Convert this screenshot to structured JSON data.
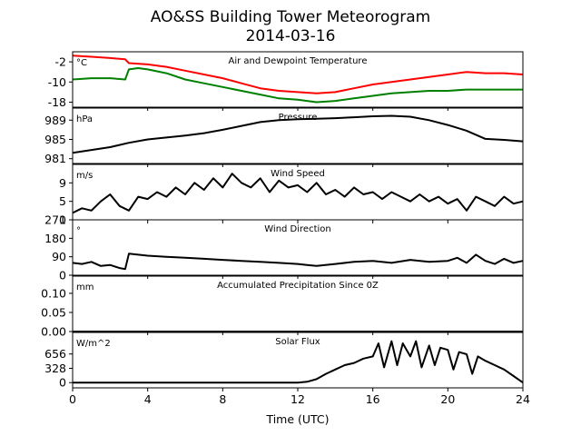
{
  "title": "AO&SS Building Tower Meteorogram",
  "subtitle": "2014-03-16",
  "chart_data": {
    "type": "line",
    "xlabel": "Time (UTC)",
    "xlim": [
      0,
      24
    ],
    "xticks": [
      0,
      4,
      8,
      12,
      16,
      20,
      24
    ],
    "grid": false,
    "panels": [
      {
        "label": "Air and Dewpoint Temperature",
        "unit": "°C",
        "ylim": [
          -20,
          2
        ],
        "yticks": [
          -2,
          -10,
          -18
        ],
        "series": [
          {
            "key": "air",
            "color": "#ff0000",
            "x": [
              0,
              1,
              2,
              2.8,
              3,
              4,
              5,
              6,
              7,
              8,
              9,
              10,
              11,
              12,
              13,
              14,
              15,
              16,
              17,
              18,
              19,
              20,
              21,
              22,
              23,
              24
            ],
            "y": [
              0.5,
              0,
              -0.5,
              -1,
              -2.5,
              -3,
              -4,
              -5.5,
              -7,
              -8.5,
              -10.5,
              -12.5,
              -13.5,
              -14,
              -14.5,
              -14,
              -12.5,
              -11,
              -10,
              -9,
              -8,
              -7,
              -6,
              -6.5,
              -6.5,
              -7
            ]
          },
          {
            "key": "dewpoint",
            "color": "#008000",
            "x": [
              0,
              1,
              2,
              2.8,
              3,
              3.5,
              4,
              5,
              6,
              7,
              8,
              9,
              10,
              11,
              12,
              13,
              14,
              15,
              16,
              17,
              18,
              19,
              20,
              21,
              22,
              23,
              24
            ],
            "y": [
              -9,
              -8.5,
              -8.5,
              -9,
              -5,
              -4.5,
              -5,
              -6.5,
              -9,
              -10.5,
              -12,
              -13.5,
              -15,
              -16.5,
              -17,
              -18,
              -17.5,
              -16.5,
              -15.5,
              -14.5,
              -14,
              -13.5,
              -13.5,
              -13,
              -13,
              -13,
              -13
            ]
          }
        ]
      },
      {
        "label": "Pressure",
        "unit": "hPa",
        "ylim": [
          980,
          991.5
        ],
        "yticks": [
          989,
          985,
          981
        ],
        "series": [
          {
            "key": "pressure",
            "color": "#000000",
            "x": [
              0,
              1,
              2,
              3,
              4,
              5,
              6,
              7,
              8,
              9,
              10,
              11,
              12,
              13,
              14,
              15,
              16,
              17,
              18,
              19,
              20,
              21,
              22,
              23,
              24
            ],
            "y": [
              982.2,
              982.8,
              983.4,
              984.3,
              985,
              985.4,
              985.8,
              986.3,
              987,
              987.8,
              988.6,
              989,
              989.2,
              989.3,
              989.4,
              989.6,
              989.8,
              989.9,
              989.7,
              989,
              988,
              986.8,
              985.1,
              984.9,
              984.6
            ]
          }
        ]
      },
      {
        "label": "Wind Speed",
        "unit": "m/s",
        "ylim": [
          1,
          13
        ],
        "yticks": [
          9,
          5,
          1
        ],
        "series": [
          {
            "key": "wind_speed",
            "color": "#000000",
            "x": [
              0,
              0.5,
              1,
              1.5,
              2,
              2.5,
              3,
              3.5,
              4,
              4.5,
              5,
              5.5,
              6,
              6.5,
              7,
              7.5,
              8,
              8.5,
              9,
              9.5,
              10,
              10.5,
              11,
              11.5,
              12,
              12.5,
              13,
              13.5,
              14,
              14.5,
              15,
              15.5,
              16,
              16.5,
              17,
              17.5,
              18,
              18.5,
              19,
              19.5,
              20,
              20.5,
              21,
              21.5,
              22,
              22.5,
              23,
              23.5,
              24
            ],
            "y": [
              2.5,
              3.5,
              3,
              5,
              6.5,
              4,
              3,
              6,
              5.5,
              7,
              6,
              8,
              6.5,
              9,
              7.5,
              10,
              8,
              11,
              9,
              8,
              10,
              7,
              9.5,
              8,
              8.5,
              7,
              9,
              6.5,
              7.5,
              6,
              8,
              6.5,
              7,
              5.5,
              7,
              6,
              5,
              6.5,
              5,
              6,
              4.5,
              5.5,
              3,
              6,
              5,
              4,
              6,
              4.5,
              5
            ]
          }
        ]
      },
      {
        "label": "Wind Direction",
        "unit": "°",
        "ylim": [
          0,
          270
        ],
        "yticks": [
          270,
          180,
          90,
          0
        ],
        "series": [
          {
            "key": "wind_direction",
            "color": "#000000",
            "x": [
              0,
              0.5,
              1,
              1.5,
              2,
              2.5,
              2.8,
              3,
              3.5,
              4,
              5,
              6,
              7,
              8,
              9,
              10,
              11,
              12,
              12.5,
              13,
              14,
              15,
              16,
              17,
              18,
              19,
              20,
              20.5,
              21,
              21.5,
              22,
              22.5,
              23,
              23.5,
              24
            ],
            "y": [
              60,
              55,
              65,
              45,
              50,
              35,
              30,
              105,
              100,
              95,
              90,
              85,
              80,
              75,
              70,
              65,
              60,
              55,
              50,
              45,
              55,
              65,
              70,
              60,
              75,
              65,
              70,
              85,
              60,
              100,
              70,
              55,
              80,
              60,
              70
            ]
          }
        ]
      },
      {
        "label": "Accumulated Precipitation Since 0Z",
        "unit": "mm",
        "ylim": [
          0,
          0.145
        ],
        "yticks": [
          0.1,
          0.05,
          0.0
        ],
        "ytick_labels": [
          "0.10",
          "0.05",
          "0.00"
        ],
        "series": [
          {
            "key": "precipitation",
            "color": "#000000",
            "x": [
              0,
              24
            ],
            "y": [
              0,
              0
            ]
          }
        ]
      },
      {
        "label": "Solar Flux",
        "unit": "W/m^2",
        "ylim": [
          -120,
          1150
        ],
        "yticks": [
          656,
          328,
          0
        ],
        "series": [
          {
            "key": "solar_flux",
            "color": "#000000",
            "x": [
              0,
              6,
              12,
              12.5,
              13,
              13.5,
              14,
              14.5,
              15,
              15.5,
              16,
              16.3,
              16.6,
              17,
              17.3,
              17.6,
              18,
              18.3,
              18.6,
              19,
              19.3,
              19.6,
              20,
              20.3,
              20.6,
              21,
              21.3,
              21.6,
              22,
              22.5,
              23,
              23.5,
              24
            ],
            "y": [
              0,
              0,
              0,
              20,
              80,
              200,
              300,
              400,
              450,
              550,
              600,
              900,
              350,
              950,
              400,
              900,
              600,
              950,
              350,
              850,
              400,
              800,
              750,
              300,
              700,
              650,
              200,
              600,
              500,
              400,
              300,
              150,
              0
            ]
          }
        ]
      }
    ]
  }
}
